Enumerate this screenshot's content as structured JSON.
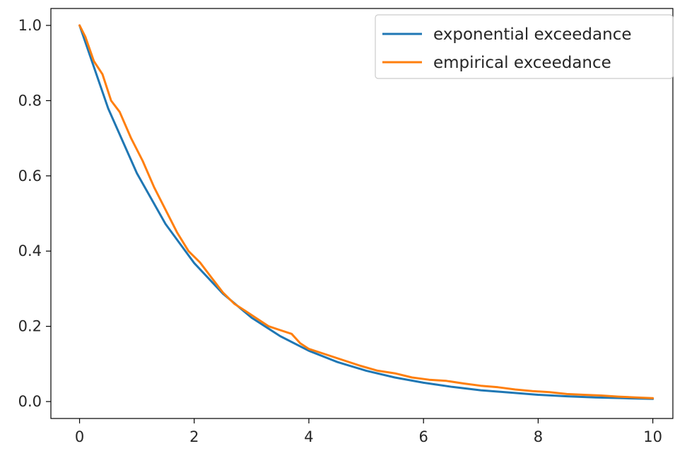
{
  "chart_data": {
    "type": "line",
    "title": "",
    "xlabel": "",
    "ylabel": "",
    "xlim": [
      -0.5,
      10.35
    ],
    "ylim": [
      -0.045,
      1.045
    ],
    "xticks": [
      0,
      2,
      4,
      6,
      8,
      10
    ],
    "yticks": [
      0.0,
      0.2,
      0.4,
      0.6,
      0.8,
      1.0
    ],
    "xtick_labels": [
      "0",
      "2",
      "4",
      "6",
      "8",
      "10"
    ],
    "ytick_labels": [
      "0.0",
      "0.2",
      "0.4",
      "0.6",
      "0.8",
      "1.0"
    ],
    "grid": false,
    "legend_position": "top-right",
    "series": [
      {
        "name": "exponential exceedance",
        "color": "#1f77b4",
        "x": [
          0,
          0.5,
          1,
          1.5,
          2,
          2.5,
          3,
          3.5,
          4,
          4.5,
          5,
          5.5,
          6,
          6.5,
          7,
          7.5,
          8,
          8.5,
          9,
          9.5,
          10
        ],
        "y": [
          1.0,
          0.779,
          0.607,
          0.472,
          0.368,
          0.287,
          0.223,
          0.174,
          0.135,
          0.105,
          0.082,
          0.064,
          0.05,
          0.039,
          0.03,
          0.024,
          0.018,
          0.014,
          0.011,
          0.009,
          0.007
        ]
      },
      {
        "name": "empirical exceedance",
        "color": "#ff7f0e",
        "x": [
          0,
          0.1,
          0.25,
          0.4,
          0.55,
          0.7,
          0.9,
          1.1,
          1.3,
          1.5,
          1.7,
          1.9,
          2.1,
          2.3,
          2.5,
          2.7,
          2.9,
          3.1,
          3.3,
          3.5,
          3.7,
          3.85,
          4.0,
          4.3,
          4.6,
          4.9,
          5.2,
          5.5,
          5.8,
          6.1,
          6.4,
          6.7,
          7.0,
          7.3,
          7.6,
          7.9,
          8.2,
          8.5,
          8.8,
          9.1,
          9.4,
          9.7,
          10
        ],
        "y": [
          1.0,
          0.97,
          0.905,
          0.87,
          0.8,
          0.77,
          0.7,
          0.64,
          0.57,
          0.51,
          0.45,
          0.4,
          0.37,
          0.33,
          0.29,
          0.26,
          0.24,
          0.22,
          0.2,
          0.19,
          0.18,
          0.155,
          0.14,
          0.125,
          0.11,
          0.095,
          0.082,
          0.075,
          0.064,
          0.058,
          0.055,
          0.048,
          0.042,
          0.038,
          0.032,
          0.028,
          0.025,
          0.02,
          0.018,
          0.016,
          0.013,
          0.011,
          0.009
        ]
      }
    ]
  }
}
